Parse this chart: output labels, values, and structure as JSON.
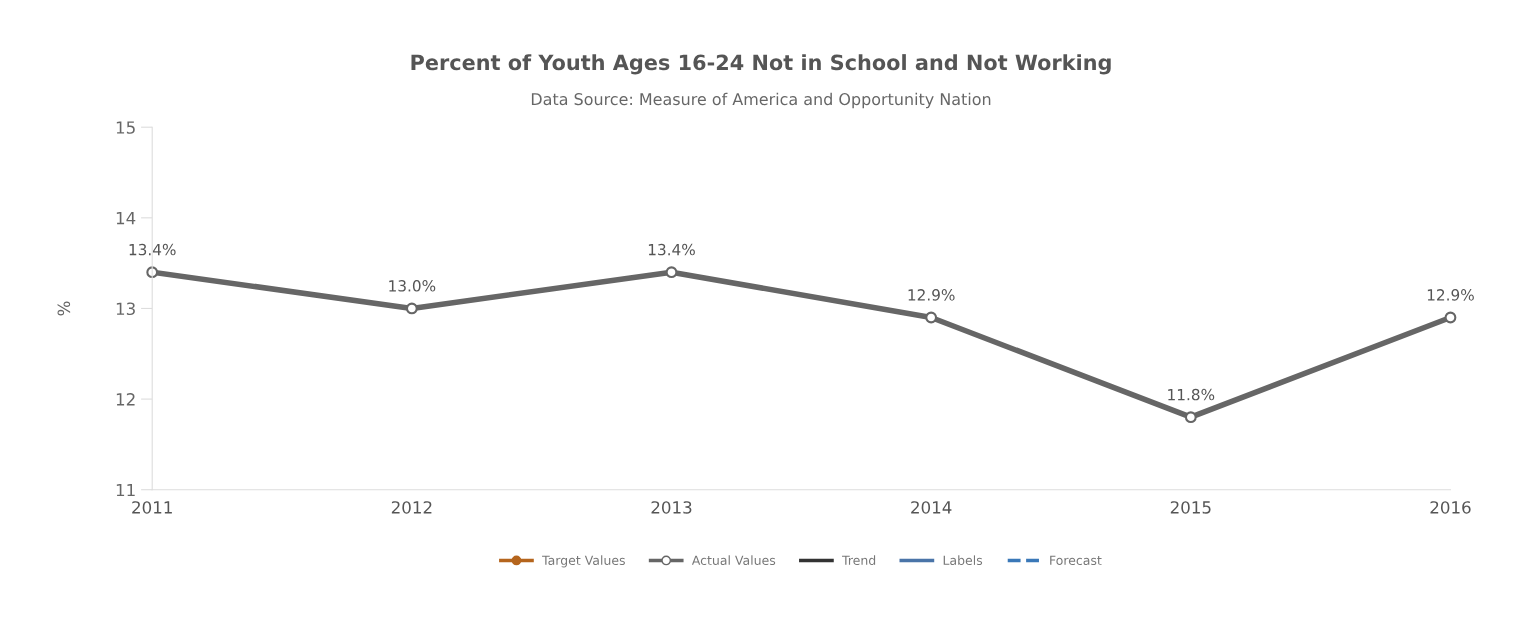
{
  "chart_data": {
    "type": "line",
    "title": "Percent of Youth Ages 16-24 Not in School and Not Working",
    "subtitle": "Data Source: Measure of America and Opportunity Nation",
    "ylabel": "%",
    "categories": [
      "2011",
      "2012",
      "2013",
      "2014",
      "2015",
      "2016"
    ],
    "ylim": [
      11,
      15
    ],
    "yticks": [
      11,
      12,
      13,
      14,
      15
    ],
    "grid": false,
    "legend": "bottom",
    "series": [
      {
        "name": "Target Values",
        "color": "#b5651d",
        "marker": "circle",
        "line_style": "solid",
        "values": [
          null,
          null,
          null,
          null,
          null,
          null
        ]
      },
      {
        "name": "Actual Values",
        "color": "#666666",
        "marker": "circle",
        "line_style": "solid",
        "values": [
          13.4,
          13.0,
          13.4,
          12.9,
          11.8,
          12.9
        ],
        "value_labels": [
          "13.4%",
          "13.0%",
          "13.4%",
          "12.9%",
          "11.8%",
          "12.9%"
        ]
      },
      {
        "name": "Trend",
        "color": "#333333",
        "marker": "none",
        "line_style": "solid",
        "values": [
          null,
          null,
          null,
          null,
          null,
          null
        ]
      },
      {
        "name": "Labels",
        "color": "#4a74a8",
        "marker": "none",
        "line_style": "solid",
        "values": [
          null,
          null,
          null,
          null,
          null,
          null
        ]
      },
      {
        "name": "Forecast",
        "color": "#3a78b8",
        "marker": "none",
        "line_style": "dashed",
        "values": [
          null,
          null,
          null,
          null,
          null,
          null
        ]
      }
    ]
  }
}
